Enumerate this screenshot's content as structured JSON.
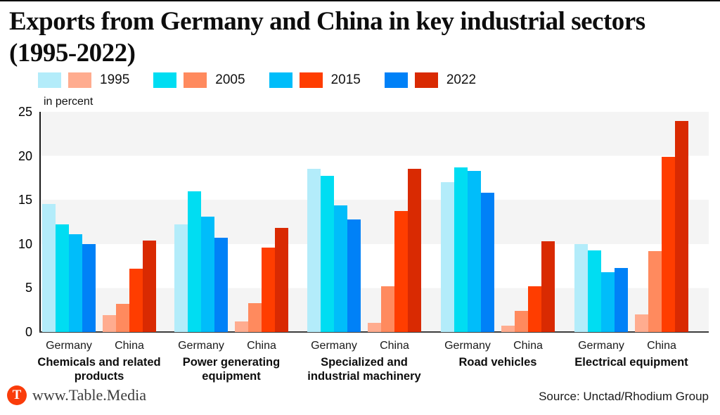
{
  "title_lines": [
    "Exports from Germany and China in key industrial sectors",
    "(1995-2022)"
  ],
  "axis_note": "in percent",
  "legend": {
    "years": [
      "1995",
      "2005",
      "2015",
      "2022"
    ]
  },
  "chart_data": {
    "type": "bar",
    "title": "Exports from Germany and China in key industrial sectors (1995-2022)",
    "ylabel": "in percent",
    "ylim": [
      0,
      25
    ],
    "yticks": [
      0,
      5,
      10,
      15,
      20,
      25
    ],
    "grid": "alternating horizontal stripes of 5 units",
    "legend_position": "top",
    "years": [
      "1995",
      "2005",
      "2015",
      "2022"
    ],
    "group_labels": [
      "Germany",
      "China"
    ],
    "sectors": [
      {
        "name": "Chemicals and related products",
        "label_lines": [
          "Chemicals and related",
          "products"
        ],
        "series": {
          "Germany": [
            14.5,
            12.2,
            11.1,
            10.0
          ],
          "China": [
            1.9,
            3.2,
            7.2,
            10.4
          ]
        }
      },
      {
        "name": "Power generating equipment",
        "label_lines": [
          "Power generating",
          "equipment"
        ],
        "series": {
          "Germany": [
            12.2,
            16.0,
            13.1,
            10.7
          ],
          "China": [
            1.2,
            3.3,
            9.6,
            11.8
          ]
        }
      },
      {
        "name": "Specialized and industrial machinery",
        "label_lines": [
          "Specialized and",
          "industrial machinery"
        ],
        "series": {
          "Germany": [
            18.5,
            17.7,
            14.4,
            12.8
          ],
          "China": [
            1.0,
            5.2,
            13.7,
            18.5
          ]
        }
      },
      {
        "name": "Road vehicles",
        "label_lines": [
          "Road vehicles"
        ],
        "series": {
          "Germany": [
            17.0,
            18.7,
            18.3,
            15.8
          ],
          "China": [
            0.7,
            2.4,
            5.2,
            10.3
          ]
        }
      },
      {
        "name": "Electrical equipment",
        "label_lines": [
          "Electrical equipment"
        ],
        "series": {
          "Germany": [
            10.0,
            9.3,
            6.8,
            7.3
          ],
          "China": [
            2.0,
            9.2,
            19.9,
            24.0
          ]
        }
      }
    ],
    "colors": {
      "germany": [
        "#b3ecfa",
        "#00ddf2",
        "#00bdfa",
        "#0081f7"
      ],
      "china": [
        "#ffac8f",
        "#ff8a5e",
        "#ff3d00",
        "#d92a02"
      ],
      "stripe": "#f4f4f4"
    }
  },
  "footer": {
    "logo_letter": "T",
    "logo_color": "#fa3c0a",
    "brand": "www.Table.Media",
    "source": "Source: Unctad/Rhodium Group"
  }
}
